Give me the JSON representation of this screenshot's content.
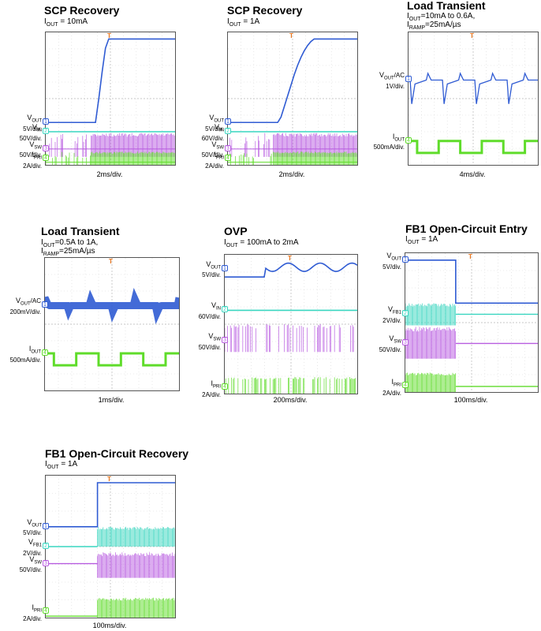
{
  "colors": {
    "vout": "#2f5bd3",
    "vin": "#39d6c0",
    "vsw": "#b85ce0",
    "ipri": "#5fdc2a",
    "iout": "#5fdc2a",
    "vfb1": "#39d6c0",
    "trigger": "#e8741c"
  },
  "chart_data": [
    {
      "type": "line",
      "title": "SCP Recovery",
      "subtitle_sym": "I",
      "subtitle_sub": "OUT",
      "subtitle_rest": " = 10mA",
      "time_div": "2ms/div.",
      "channels": [
        {
          "sym": "V",
          "sub": "OUT",
          "scale": "5V/div.",
          "marker": "1",
          "color": "vout",
          "level": [
            0.68,
            0.68,
            0.68,
            0.68,
            0.68,
            0.68,
            0.68,
            0.68,
            0.68,
            0.68,
            0.68,
            0.68,
            0.68,
            0.68,
            0.68,
            0.68,
            0.5,
            0.3,
            0.12,
            0.05,
            0.05,
            0.05,
            0.05,
            0.05,
            0.05,
            0.05,
            0.05,
            0.05,
            0.05,
            0.05,
            0.05,
            0.05,
            0.05,
            0.05,
            0.05,
            0.05,
            0.05,
            0.05,
            0.05,
            0.05
          ]
        },
        {
          "sym": "V",
          "sub": "IN",
          "scale": "50V/div.",
          "marker": "2",
          "color": "vin",
          "level": [
            0.75
          ]
        },
        {
          "sym": "V",
          "sub": "SW",
          "scale": "50V/div.",
          "marker": "3",
          "color": "vsw",
          "level": [
            0.88
          ],
          "band": [
            0.76,
            0.94
          ],
          "dense_from": 0.35
        },
        {
          "sym": "I",
          "sub": "PRI",
          "scale": "2A/div.",
          "marker": "4",
          "color": "ipri",
          "level": [
            0.98
          ],
          "band": [
            0.9,
            1.0
          ],
          "dense_from": 0.35
        }
      ]
    },
    {
      "type": "line",
      "title": "SCP Recovery",
      "subtitle_sym": "I",
      "subtitle_sub": "OUT",
      "subtitle_rest": " = 1A",
      "time_div": "2ms/div.",
      "channels": [
        {
          "sym": "V",
          "sub": "OUT",
          "scale": "5V/div.",
          "marker": "1",
          "color": "vout",
          "level": [
            0.68,
            0.68,
            0.68,
            0.68,
            0.68,
            0.68,
            0.68,
            0.68,
            0.68,
            0.68,
            0.68,
            0.68,
            0.68,
            0.68,
            0.68,
            0.68,
            0.64,
            0.56,
            0.48,
            0.4,
            0.32,
            0.25,
            0.19,
            0.14,
            0.1,
            0.07,
            0.05,
            0.05,
            0.05,
            0.05,
            0.05,
            0.05,
            0.05,
            0.05,
            0.05,
            0.05,
            0.05,
            0.05,
            0.05,
            0.05
          ]
        },
        {
          "sym": "V",
          "sub": "IN",
          "scale": "60V/div.",
          "marker": "2",
          "color": "vin",
          "level": [
            0.75
          ]
        },
        {
          "sym": "V",
          "sub": "SW",
          "scale": "50V/div.",
          "marker": "3",
          "color": "vsw",
          "level": [
            0.88
          ],
          "band": [
            0.76,
            0.94
          ],
          "dense_from": 0.35
        },
        {
          "sym": "I",
          "sub": "PRI",
          "scale": "2A/div.",
          "marker": "4",
          "color": "ipri",
          "level": [
            0.98
          ],
          "band": [
            0.9,
            1.0
          ],
          "dense_from": 0.35
        }
      ]
    },
    {
      "type": "line",
      "title": "Load Transient",
      "subtitle_sym": "I",
      "subtitle_sub": "OUT",
      "subtitle_rest": "=10mA to 0.6A,",
      "subtitle2_sym": "I",
      "subtitle2_sub": "RAMP",
      "subtitle2_rest": "=25mA/µs",
      "time_div": "4ms/div.",
      "channels": [
        {
          "sym": "V",
          "sub": "OUT",
          "suffix": "/AC",
          "scale": "1V/div.",
          "marker": "1",
          "color": "vout",
          "level": [
            0.36
          ],
          "pulses": true
        },
        {
          "sym": "I",
          "sub": "OUT",
          "scale": "500mA/div.",
          "marker": "4",
          "color": "iout",
          "level": [
            0.82
          ],
          "square": true
        }
      ]
    },
    {
      "type": "line",
      "title": "Load Transient",
      "subtitle_sym": "I",
      "subtitle_sub": "OUT",
      "subtitle_rest": "=0.5A to 1A,",
      "subtitle2_sym": "I",
      "subtitle2_sub": "RAMP",
      "subtitle2_rest": "=25mA/µs",
      "time_div": "1ms/div.",
      "channels": [
        {
          "sym": "V",
          "sub": "OUT",
          "suffix": "/AC",
          "scale": "200mV/div.",
          "marker": "1",
          "color": "vout",
          "level": [
            0.36
          ],
          "thick": true
        },
        {
          "sym": "I",
          "sub": "OUT",
          "scale": "500mA/div.",
          "marker": "4",
          "color": "iout",
          "level": [
            0.72
          ],
          "square": true
        }
      ]
    },
    {
      "type": "line",
      "title": "OVP",
      "subtitle_sym": "I",
      "subtitle_sub": "OUT",
      "subtitle_rest": " = 100mA to 2mA",
      "time_div": "200ms/div.",
      "channels": [
        {
          "sym": "V",
          "sub": "OUT",
          "scale": "5V/div.",
          "marker": "1",
          "color": "vout",
          "level": [
            0.1
          ],
          "wavy": true
        },
        {
          "sym": "V",
          "sub": "IN",
          "scale": "60V/div.",
          "marker": "2",
          "color": "vin",
          "level": [
            0.4
          ]
        },
        {
          "sym": "V",
          "sub": "SW",
          "scale": "50V/div.",
          "marker": "3",
          "color": "vsw",
          "level": [
            0.62
          ],
          "band": [
            0.5,
            0.7
          ],
          "bursts": true
        },
        {
          "sym": "I",
          "sub": "PRI",
          "scale": "2A/div.",
          "marker": "4",
          "color": "ipri",
          "level": [
            0.96
          ],
          "band": [
            0.88,
            1.0
          ],
          "bursts": true
        }
      ]
    },
    {
      "type": "line",
      "title": "FB1 Open-Circuit Entry",
      "subtitle_sym": "I",
      "subtitle_sub": "OUT",
      "subtitle_rest": " = 1A",
      "time_div": "100ms/div.",
      "channels": [
        {
          "sym": "V",
          "sub": "OUT",
          "scale": "5V/div.",
          "marker": "1",
          "color": "vout",
          "level": [
            0.05
          ],
          "step_to": 0.36,
          "step_at": 0.38
        },
        {
          "sym": "V",
          "sub": "FB1",
          "scale": "2V/div.",
          "marker": "2",
          "color": "vfb1",
          "level": [
            0.44
          ],
          "band": [
            0.36,
            0.52
          ],
          "active_until": 0.38
        },
        {
          "sym": "V",
          "sub": "SW",
          "scale": "50V/div.",
          "marker": "3",
          "color": "vsw",
          "level": [
            0.65
          ],
          "band": [
            0.53,
            0.76
          ],
          "active_until": 0.38
        },
        {
          "sym": "I",
          "sub": "PRI",
          "scale": "2A/div.",
          "marker": "4",
          "color": "ipri",
          "level": [
            0.96
          ],
          "band": [
            0.86,
            1.0
          ],
          "active_until": 0.38
        }
      ]
    },
    {
      "type": "line",
      "title": "FB1 Open-Circuit Recovery",
      "subtitle_sym": "I",
      "subtitle_sub": "OUT",
      "subtitle_rest": " = 1A",
      "time_div": "100ms/div.",
      "channels": [
        {
          "sym": "V",
          "sub": "OUT",
          "scale": "5V/div.",
          "marker": "1",
          "color": "vout",
          "level": [
            0.36
          ],
          "step_to": 0.05,
          "step_at": 0.4
        },
        {
          "sym": "V",
          "sub": "FB1",
          "scale": "2V/div.",
          "marker": "2",
          "color": "vfb1",
          "level": [
            0.5
          ],
          "band": [
            0.36,
            0.5
          ],
          "active_from": 0.4
        },
        {
          "sym": "V",
          "sub": "SW",
          "scale": "50V/div.",
          "marker": "3",
          "color": "vsw",
          "level": [
            0.62
          ],
          "band": [
            0.54,
            0.72
          ],
          "active_from": 0.4
        },
        {
          "sym": "I",
          "sub": "PRI",
          "scale": "2A/div.",
          "marker": "4",
          "color": "ipri",
          "level": [
            0.99
          ],
          "band": [
            0.86,
            1.0
          ],
          "active_from": 0.4
        }
      ]
    }
  ]
}
